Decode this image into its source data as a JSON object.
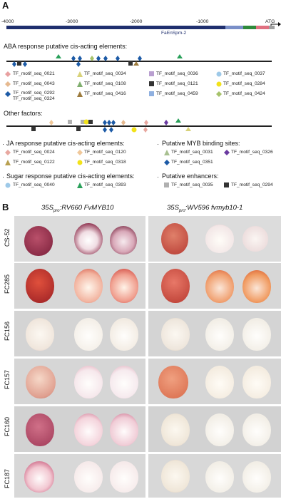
{
  "panel_a": "A",
  "panel_b": "B",
  "axis_ticks": [
    "-4000",
    "-3000",
    "-2000",
    "-1000"
  ],
  "atg_label": "ATG",
  "promoter_label": "FaEnSpm-2",
  "aba_header": "ABA response putative cis-acting elements:",
  "aba_legend": [
    {
      "label": "TF_motif_seq_0021",
      "shape": "diamond",
      "color": "#e8a0a0"
    },
    {
      "label": "TF_motif_seq_0034",
      "shape": "triangle",
      "color": "#d8d27a"
    },
    {
      "label": "TF_motif_seq_0036",
      "shape": "square",
      "color": "#b99fd0"
    },
    {
      "label": "TF_motif_seq_0037",
      "shape": "circle",
      "color": "#9ec9e8"
    },
    {
      "label": "TF_motif_seq_0043",
      "shape": "diamond",
      "color": "#e6b98f"
    },
    {
      "label": "TF_motif_seq_0108",
      "shape": "triangle",
      "color": "#7fae6e"
    },
    {
      "label": "TF_motif_seq_0121",
      "shape": "square",
      "color": "#333333"
    },
    {
      "label": "TF_motif_seq_0284",
      "shape": "circle",
      "color": "#f2e21a"
    },
    {
      "label": "TF_motif_seq_0292",
      "shape": "diamond",
      "color": "#1c5aa6"
    },
    {
      "label": "TF_motif_seq_0416",
      "shape": "triangle",
      "color": "#9c7a3c"
    },
    {
      "label": "TF_motif_seq_0459",
      "shape": "square",
      "color": "#8fb0e0"
    },
    {
      "label": "TF_motif_seq_0424",
      "shape": "diamond",
      "color": "#a6c26a"
    },
    {
      "label": "TF_motif_seq_0324",
      "shape": "none",
      "color": "#222222"
    }
  ],
  "other_header": "Other factors:",
  "ja_header": "JA response putative cis-acting elements:",
  "ja_legend": [
    {
      "label": "TF_motif_seq_0024",
      "shape": "diamond",
      "color": "#e8a8a0"
    },
    {
      "label": "TF_motif_seq_0120",
      "shape": "diamond",
      "color": "#f0c89a"
    },
    {
      "label": "TF_motif_seq_0122",
      "shape": "triangle",
      "color": "#b8a050"
    },
    {
      "label": "TF_motif_seq_0318",
      "shape": "circle",
      "color": "#f2e21a"
    }
  ],
  "myb_header": "Putative MYB binding sites:",
  "myb_legend": [
    {
      "label": "TF_motif_seq_0031",
      "shape": "triangle",
      "color": "#a8c090"
    },
    {
      "label": "TF_motif_seq_0326",
      "shape": "diamond",
      "color": "#6a3aa0"
    },
    {
      "label": "TF_motif_seq_0351",
      "shape": "diamond",
      "color": "#1c5aa6"
    }
  ],
  "sugar_header": "Sugar response putative cis-acting elements:",
  "sugar_legend": [
    {
      "label": "TF_motif_seq_0040",
      "shape": "circle",
      "color": "#9ec9e8"
    },
    {
      "label": "TF_motif_seq_0393",
      "shape": "triangle",
      "color": "#2aa05a"
    }
  ],
  "enh_header": "Putative enhancers:",
  "enh_legend": [
    {
      "label": "TF_motif_seq_0035",
      "shape": "square",
      "color": "#b0b0b0"
    },
    {
      "label": "TF_motif_seq_0294",
      "shape": "square",
      "color": "#333333"
    }
  ],
  "col_left_header": "35S",
  "col_left_sub": "pro",
  "col_left_rest": ":RV660 FvMYB10",
  "col_right_header": "35S",
  "col_right_sub": "pro",
  "col_right_rest": ":WV596 fvmyb10-1",
  "rows": [
    "CS-52",
    "FC285",
    "FC156",
    "FC157",
    "FC160",
    "FC187"
  ]
}
